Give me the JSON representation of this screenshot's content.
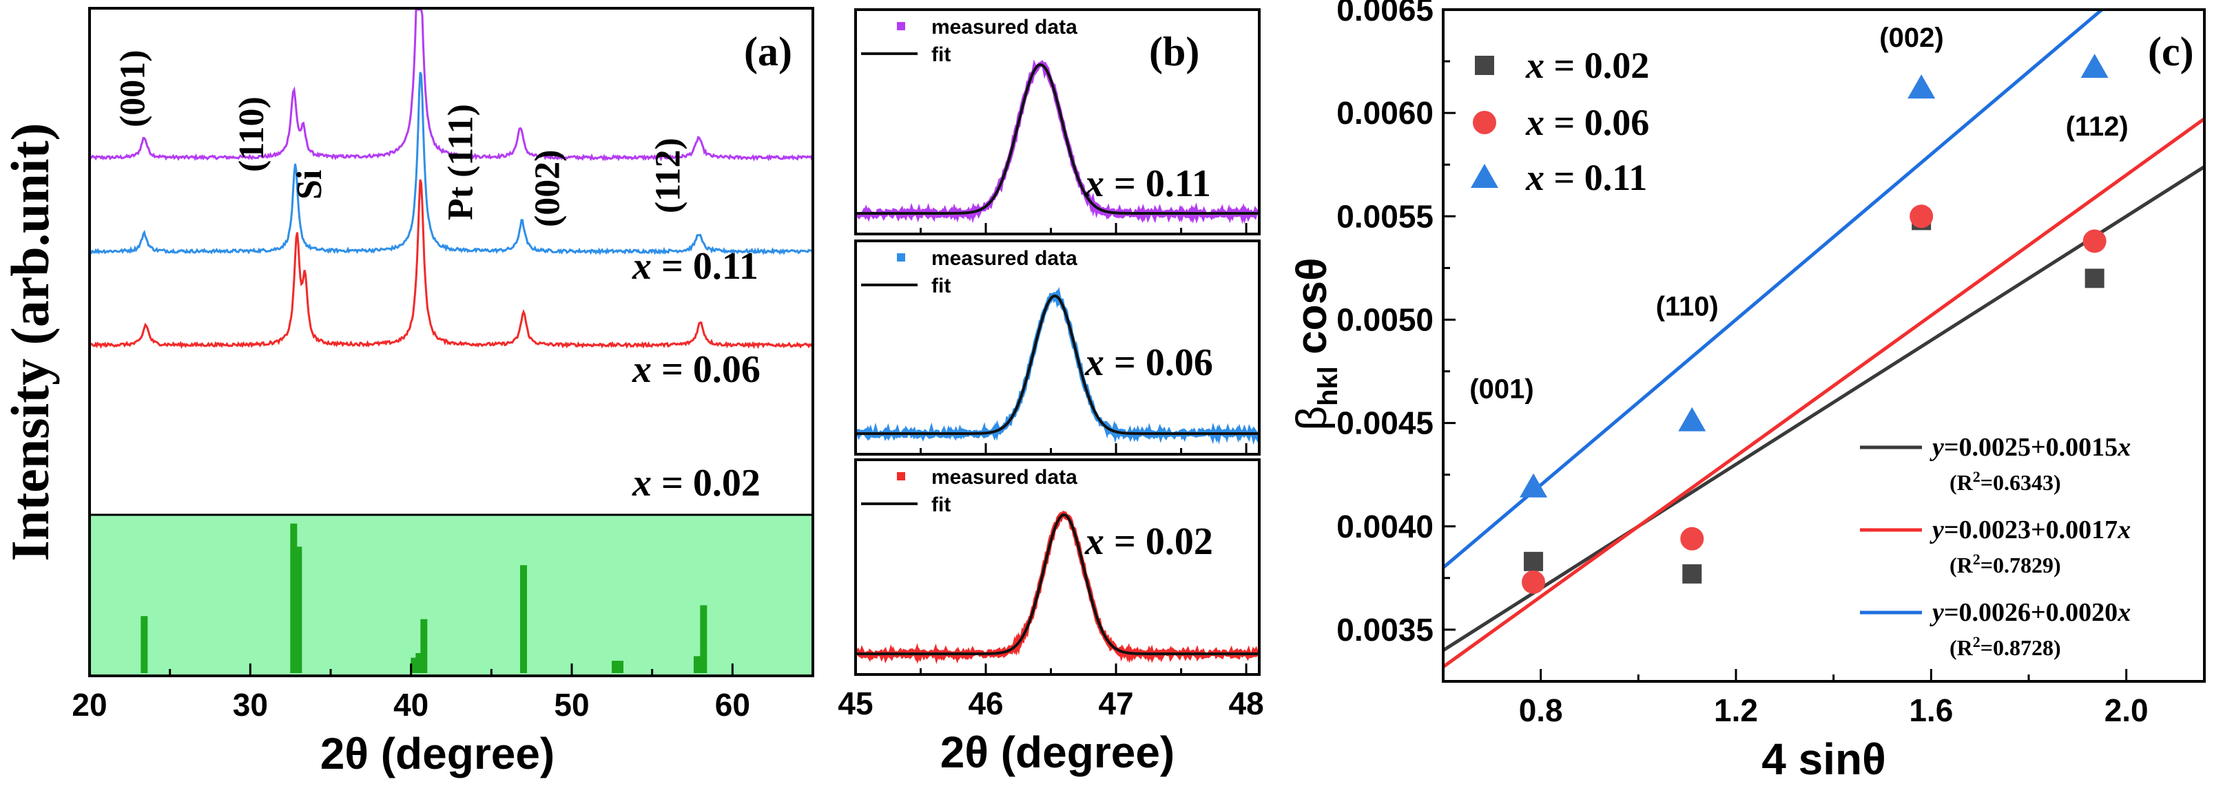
{
  "colors": {
    "purple": "#b43cf2",
    "blue": "#2f8fe8",
    "red": "#f22a2a",
    "green_bg": "#98f5b2",
    "green_bar": "#1ea61e",
    "black": "#222222",
    "grey": "#454545",
    "fit_blue": "#1f6fdf",
    "fit_red": "#f22f2f",
    "fit_grey": "#3a3a3a",
    "marker_red": "#f04545",
    "marker_blue": "#2f7fe0"
  },
  "chart_data": [
    {
      "type": "line",
      "panel": "a",
      "panel_label": "(a)",
      "ylabel": "Intensity (arb.unit)",
      "xlabel": "2θ (degree)",
      "xlim": [
        20,
        65
      ],
      "xticks": [
        20,
        30,
        40,
        50,
        60
      ],
      "xtick_labels": [
        "20",
        "30",
        "40",
        "50",
        "60"
      ],
      "series": [
        {
          "name": "x = 0.11",
          "label_var": "x",
          "label_rest": " = 0.11",
          "color": "purple",
          "baseline": 0.705,
          "peaks": [
            {
              "x": 23.4,
              "h": 0.04,
              "w": 0.22
            },
            {
              "x": 32.7,
              "h": 0.13,
              "w": 0.22
            },
            {
              "x": 33.3,
              "h": 0.05,
              "w": 0.18
            },
            {
              "x": 40.5,
              "h": 0.46,
              "w": 0.25
            },
            {
              "x": 46.8,
              "h": 0.06,
              "w": 0.22
            },
            {
              "x": 57.9,
              "h": 0.04,
              "w": 0.25
            }
          ]
        },
        {
          "name": "x = 0.06",
          "label_var": "x",
          "label_rest": " = 0.06",
          "color": "blue",
          "baseline": 0.52,
          "peaks": [
            {
              "x": 23.4,
              "h": 0.035,
              "w": 0.22
            },
            {
              "x": 32.8,
              "h": 0.17,
              "w": 0.2
            },
            {
              "x": 40.6,
              "h": 0.36,
              "w": 0.23
            },
            {
              "x": 46.9,
              "h": 0.06,
              "w": 0.22
            },
            {
              "x": 57.9,
              "h": 0.035,
              "w": 0.25
            }
          ]
        },
        {
          "name": "x = 0.02",
          "label_var": "x",
          "label_rest": " = 0.02",
          "color": "red",
          "baseline": 0.335,
          "peaks": [
            {
              "x": 23.5,
              "h": 0.04,
              "w": 0.22
            },
            {
              "x": 32.9,
              "h": 0.21,
              "w": 0.2
            },
            {
              "x": 33.4,
              "h": 0.12,
              "w": 0.18
            },
            {
              "x": 40.6,
              "h": 0.33,
              "w": 0.23
            },
            {
              "x": 47.0,
              "h": 0.065,
              "w": 0.22
            },
            {
              "x": 58.0,
              "h": 0.045,
              "w": 0.25
            }
          ]
        }
      ],
      "reference_bars": [
        {
          "x": 23.4,
          "h": 0.37
        },
        {
          "x": 32.7,
          "h": 0.97
        },
        {
          "x": 33.0,
          "h": 0.82
        },
        {
          "x": 40.2,
          "h": 0.1
        },
        {
          "x": 40.5,
          "h": 0.13
        },
        {
          "x": 40.8,
          "h": 0.35
        },
        {
          "x": 47.0,
          "h": 0.7
        },
        {
          "x": 52.7,
          "h": 0.08
        },
        {
          "x": 53.0,
          "h": 0.08
        },
        {
          "x": 57.8,
          "h": 0.11
        },
        {
          "x": 58.2,
          "h": 0.44
        }
      ],
      "peak_labels": [
        {
          "text": "(001)",
          "x": 23.4,
          "rotated": true
        },
        {
          "text": "(110)",
          "x": 30.8,
          "rotated": true
        },
        {
          "text": "Si",
          "x": 34.4,
          "rotated": true
        },
        {
          "text": "Pt (111)",
          "x": 43.8,
          "rotated": true
        },
        {
          "text": "(002)",
          "x": 49.2,
          "rotated": true
        },
        {
          "text": "(112)",
          "x": 56.7,
          "rotated": true
        }
      ]
    },
    {
      "type": "line",
      "panel": "b",
      "panel_label": "(b)",
      "xlabel": "2θ (degree)",
      "xlim": [
        45,
        48.1
      ],
      "xticks": [
        45,
        46,
        47,
        48
      ],
      "xtick_labels": [
        "45",
        "46",
        "47",
        "48"
      ],
      "legend_measured": "measured data",
      "legend_fit": "fit",
      "subplots": [
        {
          "name": "x = 0.11",
          "label_var": "x",
          "label_rest": " = 0.11",
          "color": "purple",
          "center": 46.42,
          "sigma": 0.17
        },
        {
          "name": "x = 0.06",
          "label_var": "x",
          "label_rest": " = 0.06",
          "color": "blue",
          "center": 46.53,
          "sigma": 0.16
        },
        {
          "name": "x = 0.02",
          "label_var": "x",
          "label_rest": " = 0.02",
          "color": "red",
          "center": 46.6,
          "sigma": 0.155
        }
      ]
    },
    {
      "type": "scatter",
      "panel": "c",
      "panel_label": "(c)",
      "xlabel": "4 sinθ",
      "ylabel_main": "β",
      "ylabel_sub": "hkl",
      "ylabel_rest": " cosθ",
      "xlim": [
        0.6,
        2.16
      ],
      "ylim": [
        0.00325,
        0.0065
      ],
      "xticks": [
        0.8,
        1.2,
        1.6,
        2.0
      ],
      "xtick_labels": [
        "0.8",
        "1.2",
        "1.6",
        "2.0"
      ],
      "yticks": [
        0.0035,
        0.004,
        0.0045,
        0.005,
        0.0055,
        0.006,
        0.0065
      ],
      "ytick_labels": [
        "0.0035",
        "0.0040",
        "0.0045",
        "0.0050",
        "0.0055",
        "0.0060",
        "0.0065"
      ],
      "series": [
        {
          "name": "x = 0.02",
          "label_var": "x",
          "label_rest": " = 0.02",
          "marker": "square",
          "color": "grey",
          "x": [
            0.785,
            1.11,
            1.58,
            1.935
          ],
          "y": [
            0.00383,
            0.00377,
            0.00548,
            0.0052
          ],
          "fit": {
            "intercept": 0.0025,
            "slope": 0.0015,
            "eq_var": "y",
            "eq_rest": "=0.0025+0.0015",
            "eq_x": "x",
            "r2_pre": "(R",
            "r2_sup": "2",
            "r2_post": "=0.6343)",
            "color": "fit_grey"
          }
        },
        {
          "name": "x = 0.06",
          "label_var": "x",
          "label_rest": " = 0.06",
          "marker": "circle",
          "color": "marker_red",
          "x": [
            0.785,
            1.11,
            1.58,
            1.935
          ],
          "y": [
            0.00373,
            0.00394,
            0.0055,
            0.00538
          ],
          "fit": {
            "intercept": 0.0023,
            "slope": 0.0017,
            "eq_var": "y",
            "eq_rest": "=0.0023+0.0017",
            "eq_x": "x",
            "r2_pre": "(R",
            "r2_sup": "2",
            "r2_post": "=0.7829)",
            "color": "fit_red"
          }
        },
        {
          "name": "x = 0.11",
          "label_var": "x",
          "label_rest": " = 0.11",
          "marker": "triangle",
          "color": "marker_blue",
          "x": [
            0.785,
            1.11,
            1.58,
            1.935
          ],
          "y": [
            0.00419,
            0.00451,
            0.00612,
            0.00622
          ],
          "fit": {
            "intercept": 0.0026,
            "slope": 0.002,
            "eq_var": "y",
            "eq_rest": "=0.0026+0.0020",
            "eq_x": "x",
            "r2_pre": "(R",
            "r2_sup": "2",
            "r2_post": "=0.8728)",
            "color": "fit_blue"
          }
        }
      ],
      "annotations": [
        {
          "text": "(001)",
          "x": 0.72,
          "y": 0.00462
        },
        {
          "text": "(110)",
          "x": 1.1,
          "y": 0.00502
        },
        {
          "text": "(002)",
          "x": 1.56,
          "y": 0.00632
        },
        {
          "text": "(112)",
          "x": 1.94,
          "y": 0.00589
        }
      ]
    }
  ]
}
